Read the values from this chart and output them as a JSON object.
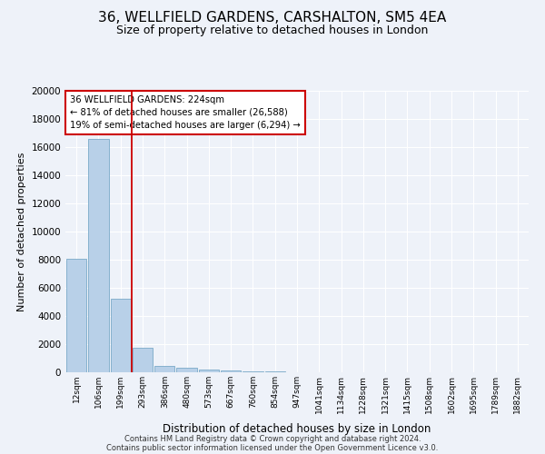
{
  "title": "36, WELLFIELD GARDENS, CARSHALTON, SM5 4EA",
  "subtitle": "Size of property relative to detached houses in London",
  "xlabel": "Distribution of detached houses by size in London",
  "ylabel": "Number of detached properties",
  "annotation_line1": "36 WELLFIELD GARDENS: 224sqm",
  "annotation_line2": "← 81% of detached houses are smaller (26,588)",
  "annotation_line3": "19% of semi-detached houses are larger (6,294) →",
  "footer_line1": "Contains HM Land Registry data © Crown copyright and database right 2024.",
  "footer_line2": "Contains public sector information licensed under the Open Government Licence v3.0.",
  "bar_color": "#b8d0e8",
  "bar_edge_color": "#7aaac8",
  "marker_color": "#cc0000",
  "categories": [
    "12sqm",
    "106sqm",
    "199sqm",
    "293sqm",
    "386sqm",
    "480sqm",
    "573sqm",
    "667sqm",
    "760sqm",
    "854sqm",
    "947sqm",
    "1041sqm",
    "1134sqm",
    "1228sqm",
    "1321sqm",
    "1415sqm",
    "1508sqm",
    "1602sqm",
    "1695sqm",
    "1789sqm",
    "1882sqm"
  ],
  "values": [
    8050,
    16600,
    5200,
    1750,
    450,
    320,
    180,
    140,
    90,
    70,
    0,
    0,
    0,
    0,
    0,
    0,
    0,
    0,
    0,
    0,
    0
  ],
  "ylim": [
    0,
    20000
  ],
  "yticks": [
    0,
    2000,
    4000,
    6000,
    8000,
    10000,
    12000,
    14000,
    16000,
    18000,
    20000
  ],
  "background_color": "#eef2f9",
  "grid_color": "#ffffff",
  "title_fontsize": 11,
  "subtitle_fontsize": 9,
  "red_line_x": 2.5
}
